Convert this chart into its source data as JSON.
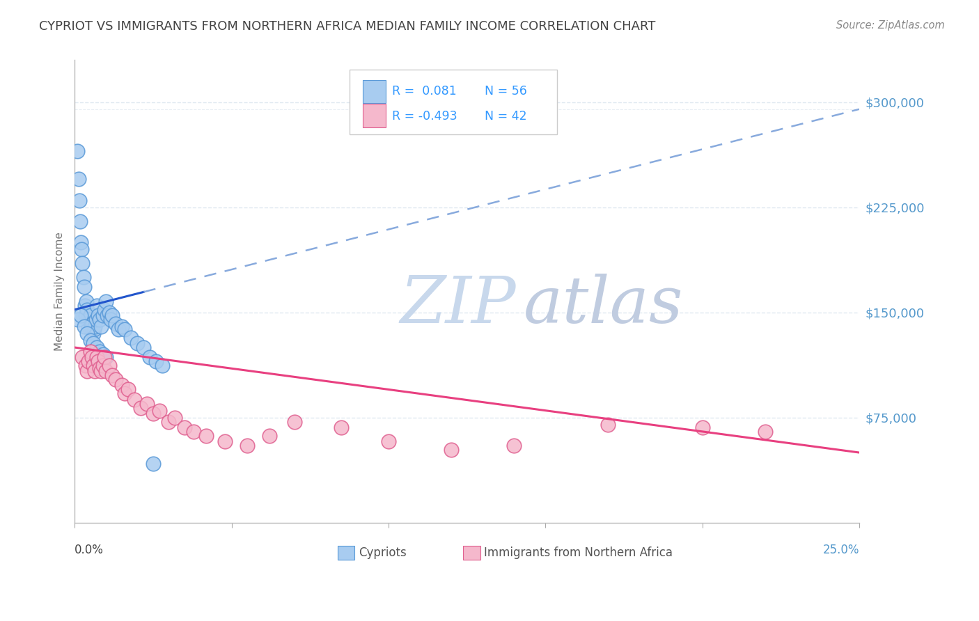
{
  "title": "CYPRIOT VS IMMIGRANTS FROM NORTHERN AFRICA MEDIAN FAMILY INCOME CORRELATION CHART",
  "source": "Source: ZipAtlas.com",
  "ylabel": "Median Family Income",
  "xlim": [
    0.0,
    25.0
  ],
  "ylim": [
    0,
    330000
  ],
  "ytick_vals": [
    75000,
    150000,
    225000,
    300000
  ],
  "ytick_labels": [
    "$75,000",
    "$150,000",
    "$225,000",
    "$300,000"
  ],
  "cypriot_color": "#A8CCF0",
  "cypriot_edge": "#5A9AD8",
  "immigrant_color": "#F5B8CC",
  "immigrant_edge": "#E06090",
  "trend_blue_solid": "#2255CC",
  "trend_blue_dash": "#88AADD",
  "trend_pink": "#E84080",
  "grid_color": "#E0E8F0",
  "bg_color": "#FFFFFF",
  "watermark_zip": "#C8D8EC",
  "watermark_atlas": "#C0CCE0",
  "legend_color": "#3399FF",
  "r1_val": "0.081",
  "n1_val": "56",
  "r2_val": "-0.493",
  "n2_val": "42",
  "axis_label_color": "#5599CC",
  "title_color": "#444444",
  "source_color": "#888888",
  "bottom_label_color": "#555555"
}
